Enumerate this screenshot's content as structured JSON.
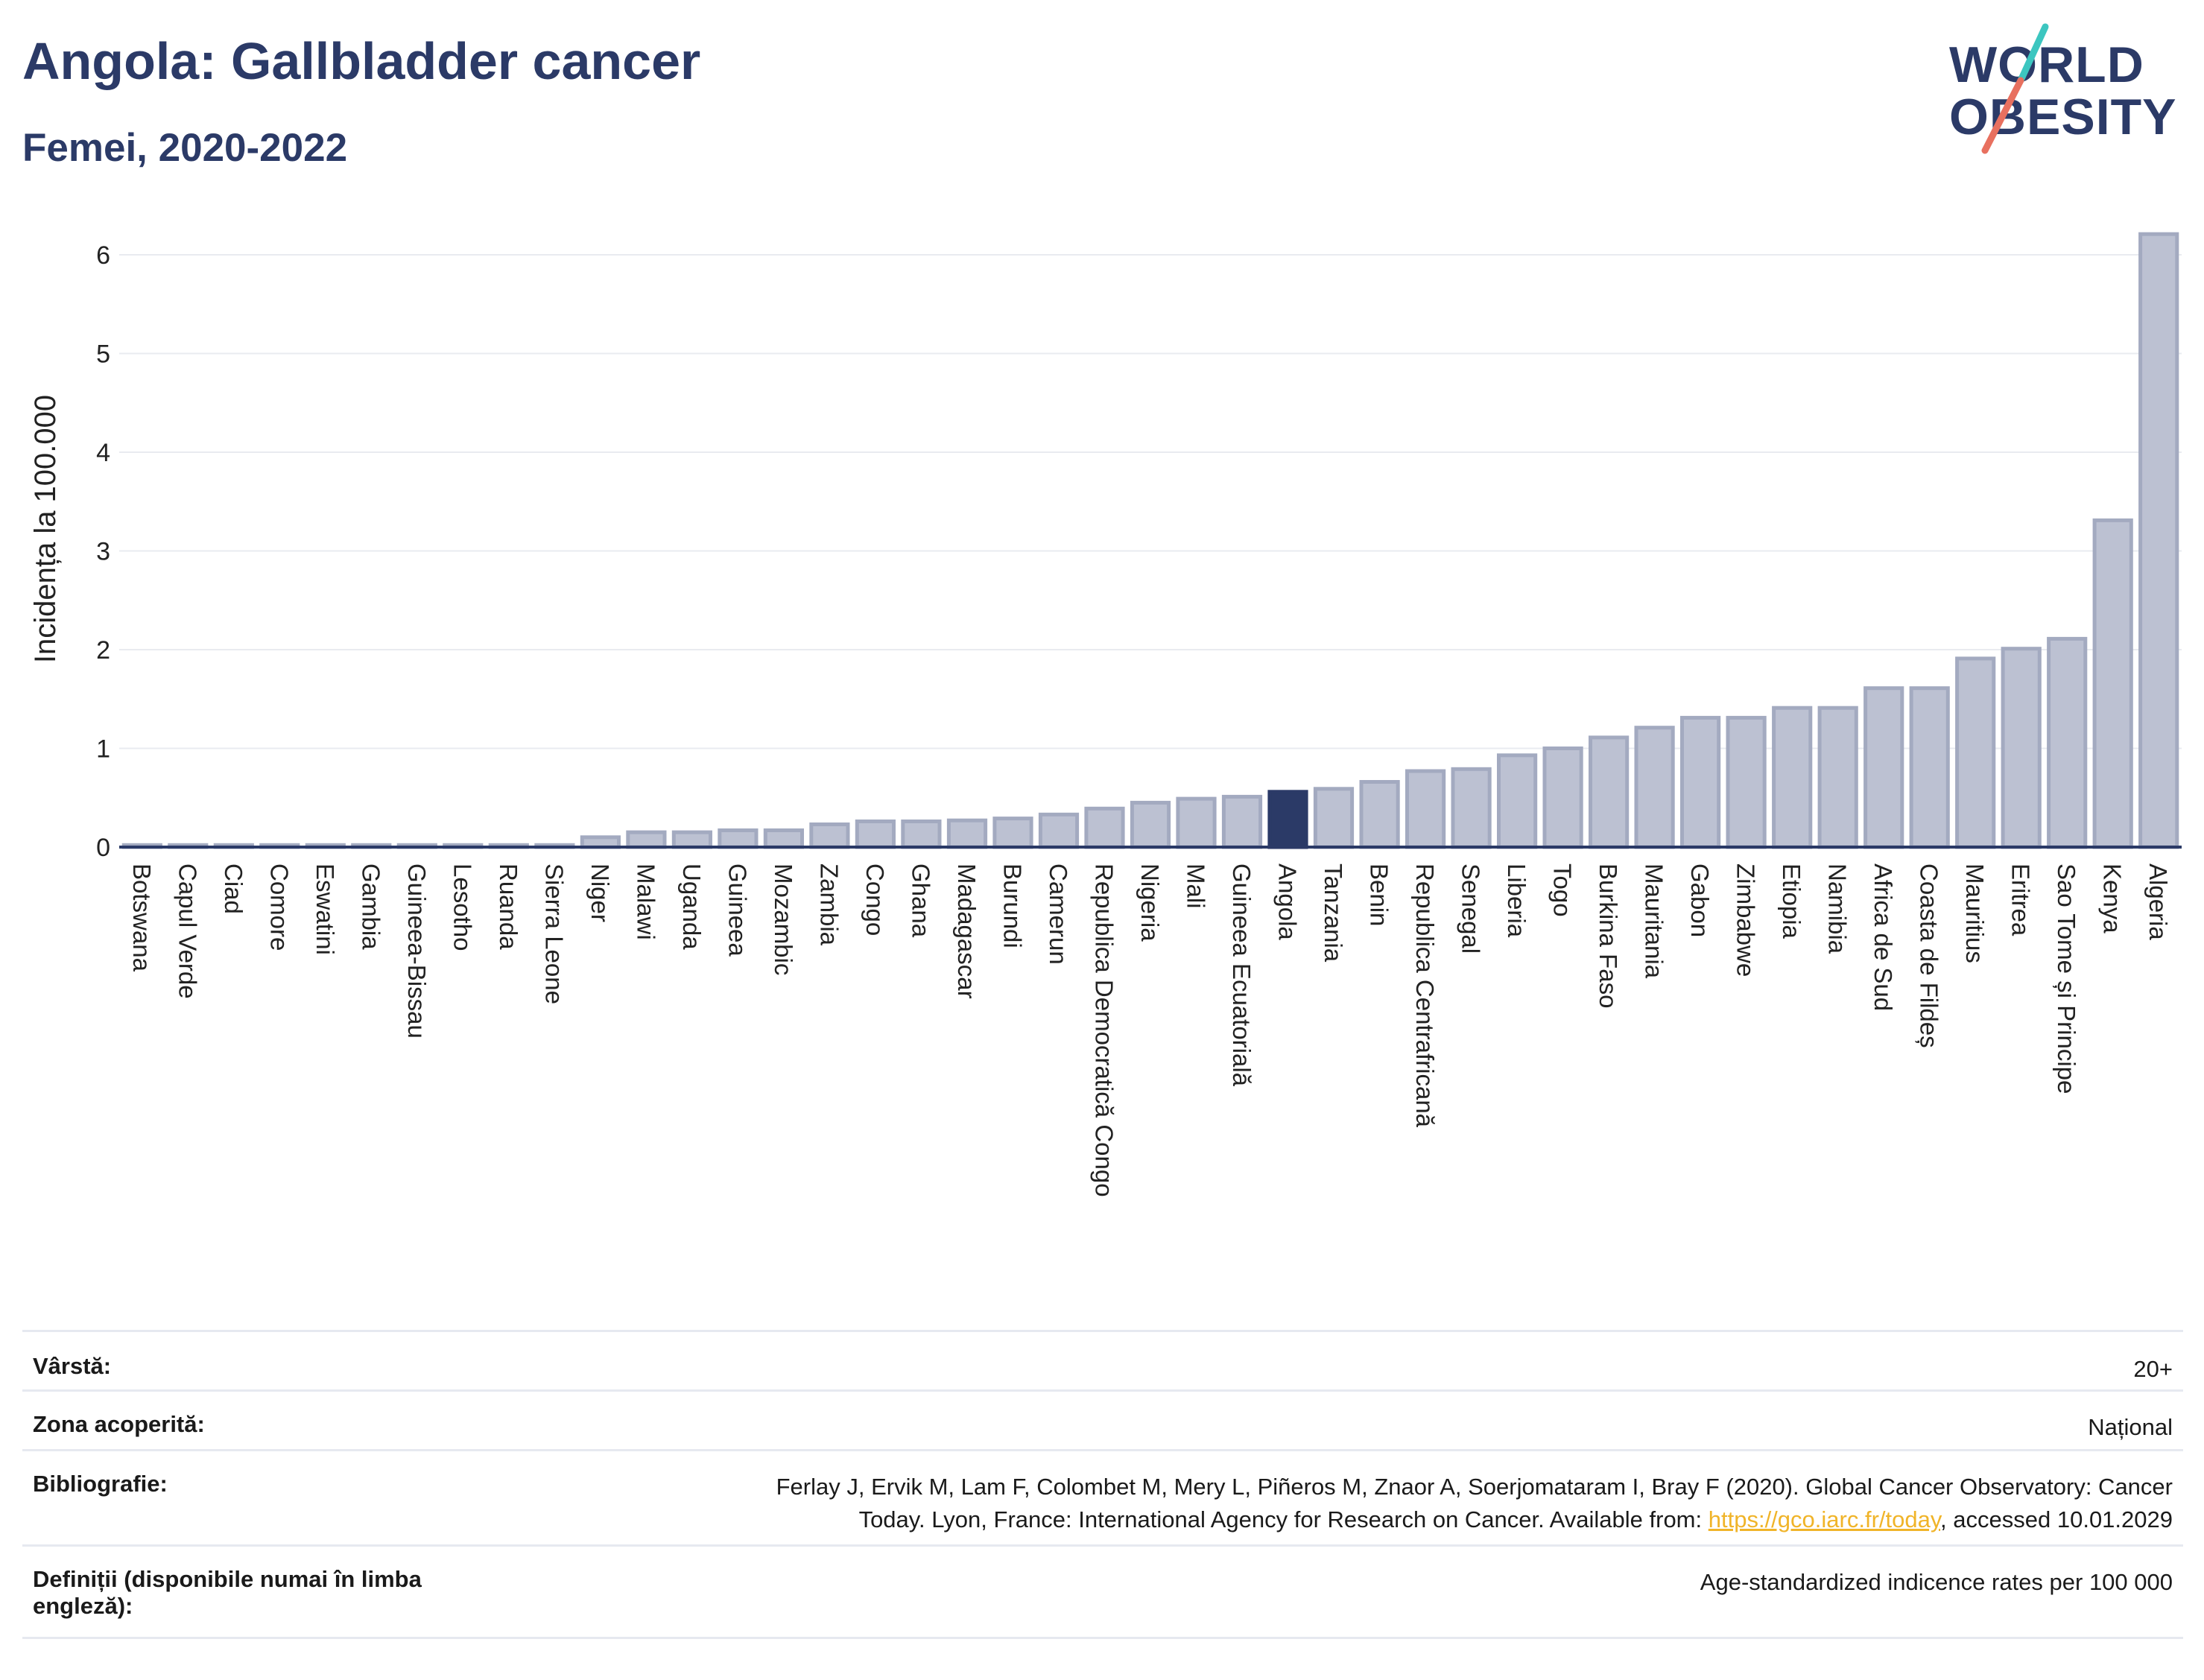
{
  "header": {
    "title": "Angola: Gallbladder cancer",
    "subtitle": "Femei, 2020-2022"
  },
  "logo": {
    "line1": "WORLD",
    "line2": "OBESITY",
    "accent_teal": "#3cc6c0",
    "accent_coral": "#e8705f"
  },
  "colors": {
    "brand": "#2b3a67",
    "bar_fill": "#bcc1d2",
    "bar_stroke": "#a3aac0",
    "highlight": "#2b3a67"
  },
  "chart_data": {
    "type": "bar",
    "title": "Angola: Gallbladder cancer",
    "subtitle": "Femei, 2020-2022",
    "ylabel": "Incidența la 100.000",
    "xlabel": "",
    "ylim": [
      0,
      6.6
    ],
    "yticks": [
      0,
      1,
      2,
      3,
      4,
      5,
      6
    ],
    "grid": true,
    "highlight": "Angola",
    "categories": [
      "Botswana",
      "Capul Verde",
      "Ciad",
      "Comore",
      "Eswatini",
      "Gambia",
      "Guineea-Bissau",
      "Lesotho",
      "Ruanda",
      "Sierra Leone",
      "Niger",
      "Malawi",
      "Uganda",
      "Guineea",
      "Mozambic",
      "Zambia",
      "Congo",
      "Ghana",
      "Madagascar",
      "Burundi",
      "Camerun",
      "Republica Democratică Congo",
      "Nigeria",
      "Mali",
      "Guineea Ecuatorială",
      "Angola",
      "Tanzania",
      "Benin",
      "Republica Centrafricană",
      "Senegal",
      "Liberia",
      "Togo",
      "Burkina Faso",
      "Mauritania",
      "Gabon",
      "Zimbabwe",
      "Etiopia",
      "Namibia",
      "Africa de Sud",
      "Coasta de Fildeș",
      "Mauritius",
      "Eritrea",
      "Sao Tome și Principe",
      "Kenya",
      "Algeria"
    ],
    "values": [
      0.02,
      0.02,
      0.02,
      0.02,
      0.02,
      0.02,
      0.02,
      0.02,
      0.02,
      0.02,
      0.1,
      0.15,
      0.15,
      0.17,
      0.17,
      0.23,
      0.26,
      0.26,
      0.27,
      0.29,
      0.33,
      0.39,
      0.45,
      0.49,
      0.51,
      0.56,
      0.59,
      0.66,
      0.77,
      0.79,
      0.93,
      1.0,
      1.11,
      1.21,
      1.31,
      1.31,
      1.41,
      1.41,
      1.61,
      1.61,
      1.91,
      2.01,
      2.11,
      3.31,
      6.21
    ]
  },
  "meta": {
    "age_label": "Vârstă:",
    "age_value": "20+",
    "coverage_label": "Zona acoperită:",
    "coverage_value": "Național",
    "bib_label": "Bibliografie:",
    "bib_text_1": "Ferlay J, Ervik M, Lam F, Colombet M, Mery L, Piñeros M, Znaor A, Soerjomataram I, Bray F (2020). Global Cancer Observatory: Cancer",
    "bib_text_2": "Today. Lyon, France: International Agency for Research on Cancer. Available from: ",
    "bib_link": "https://gco.iarc.fr/today",
    "bib_text_3": ", accessed 10.01.2029",
    "def_label": "Definiții (disponibile numai în limba engleză):",
    "def_value": "Age-standardized indicence rates per 100 000"
  }
}
